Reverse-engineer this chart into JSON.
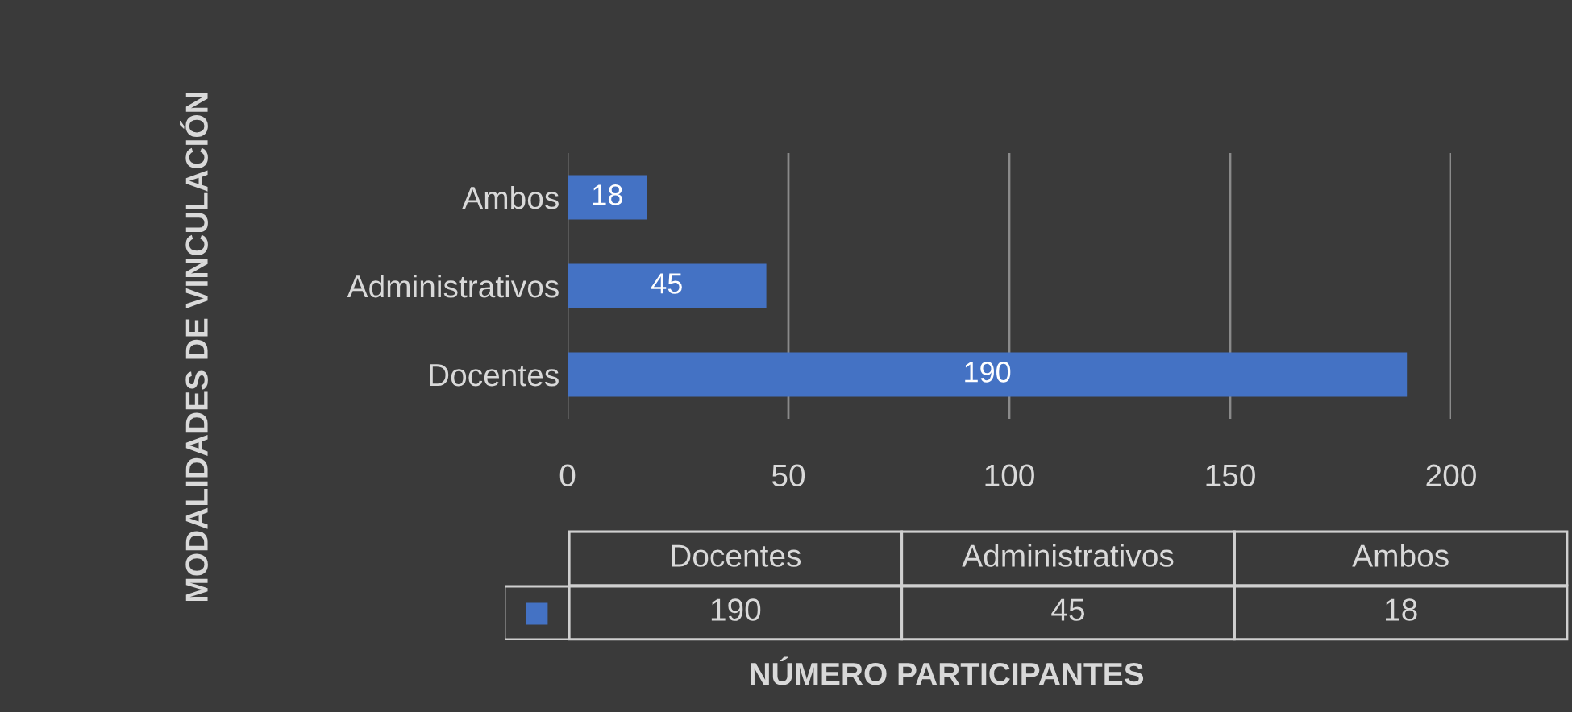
{
  "chart_data": {
    "type": "bar",
    "orientation": "horizontal",
    "ylabel": "MODALIDADES DE VINCULACIÓN",
    "categories": [
      "Ambos",
      "Administrativos",
      "Docentes"
    ],
    "values": [
      18,
      45,
      190
    ],
    "color": "#4472c4",
    "annotations": [
      "190",
      "45",
      "18",
      "NÚMERO PARTICIPANTES"
    ],
    "xlim": [
      0,
      200
    ],
    "xticks": [
      0,
      50,
      100,
      150,
      200
    ],
    "grid": "x",
    "data_labels": true
  }
}
